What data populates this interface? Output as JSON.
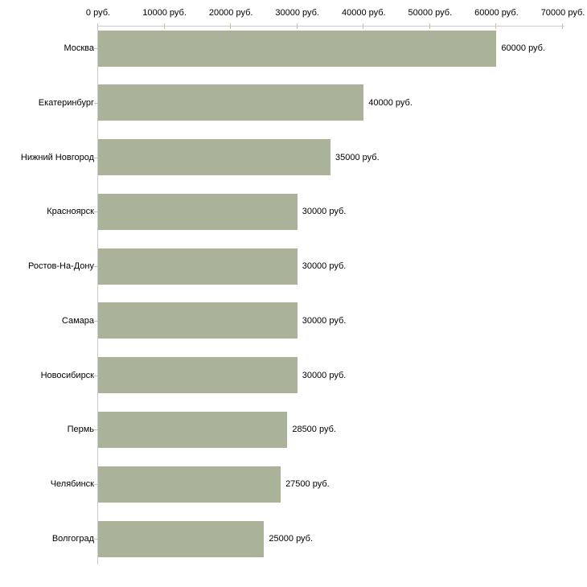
{
  "chart_data": {
    "type": "bar",
    "orientation": "horizontal",
    "title": "",
    "xlabel": "",
    "ylabel": "",
    "unit_suffix": " руб.",
    "categories": [
      "Москва",
      "Екатеринбург",
      "Нижний Новгород",
      "Красноярск",
      "Ростов-На-Дону",
      "Самара",
      "Новосибирск",
      "Пермь",
      "Челябинск",
      "Волгоград"
    ],
    "values": [
      60000,
      40000,
      35000,
      30000,
      30000,
      30000,
      30000,
      28500,
      27500,
      25000
    ],
    "value_labels": [
      "60000 руб.",
      "40000 руб.",
      "35000 руб.",
      "30000 руб.",
      "30000 руб.",
      "30000 руб.",
      "30000 руб.",
      "28500 руб.",
      "27500 руб.",
      "25000 руб."
    ],
    "x_ticks": [
      0,
      10000,
      20000,
      30000,
      40000,
      50000,
      60000,
      70000
    ],
    "x_tick_labels": [
      "0 руб.",
      "10000 руб.",
      "20000 руб.",
      "30000 руб.",
      "40000 руб.",
      "50000 руб.",
      "60000 руб.",
      "70000 руб."
    ],
    "xlim": [
      0,
      70000
    ],
    "grid": false,
    "legend": "none",
    "colors": {
      "bar": "#aab399",
      "axis": "#cccccc",
      "tick": "#c9c5a0",
      "text": "#000000",
      "background": "#ffffff"
    }
  }
}
